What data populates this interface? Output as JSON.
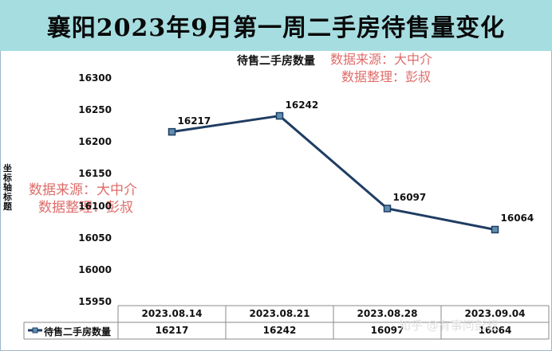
{
  "header": {
    "title": "襄阳2023年9月第一周二手房待售量变化"
  },
  "watermarks": {
    "line1": "数据来源：大中介",
    "line2": "数据整理：彭叔",
    "site": "知乎 @有事问彭叔"
  },
  "chart_data": {
    "type": "line",
    "title": "待售二手房数量",
    "ylabel": "坐标轴标题",
    "xlabel": "",
    "categories": [
      "2023.08.14",
      "2023.08.21",
      "2023.08.28",
      "2023.09.04"
    ],
    "series": [
      {
        "name": "待售二手房数量",
        "values": [
          16217,
          16242,
          16097,
          16064
        ]
      }
    ],
    "ylim": [
      15950,
      16300
    ],
    "yticks": [
      16300,
      16250,
      16200,
      16150,
      16100,
      16050,
      16000,
      15950
    ],
    "grid": false,
    "legend": "data-table",
    "colors": {
      "line": "#1f3d63",
      "marker_fill": "#5f8fb0",
      "title_bar": "#a6dde0"
    }
  }
}
